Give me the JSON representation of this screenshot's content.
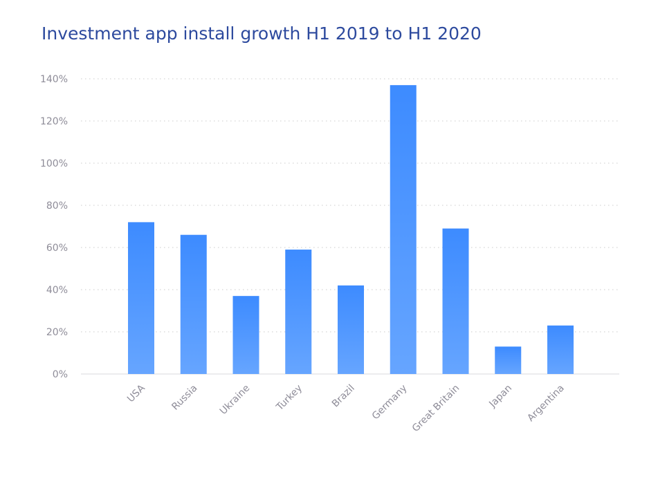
{
  "chart_data": {
    "type": "bar",
    "title": "Investment app install growth H1 2019 to H1 2020",
    "xlabel": "",
    "ylabel": "",
    "categories": [
      "USA",
      "Russia",
      "Ukraine",
      "Turkey",
      "Brazil",
      "Germany",
      "Great Britain",
      "Japan",
      "Argentina"
    ],
    "values": [
      72,
      66,
      37,
      59,
      42,
      137,
      69,
      13,
      23
    ],
    "unit": "%",
    "ylim": [
      0,
      140
    ],
    "yticks": [
      "0%",
      "20%",
      "40%",
      "60%",
      "80%",
      "100%",
      "120%",
      "140%"
    ],
    "grid": true,
    "legend": "none",
    "colors": {
      "bar_top": "#3d8bff",
      "bar_bottom": "#66a5ff",
      "grid": "#d5d5d5",
      "title": "#2d4a9e"
    }
  }
}
